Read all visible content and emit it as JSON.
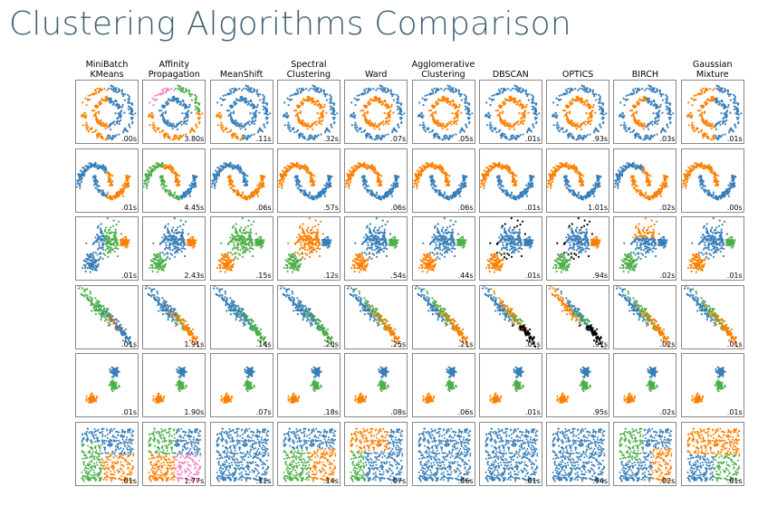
{
  "title": "Clustering Algorithms Comparison",
  "colors": {
    "c0": "#377eb8",
    "c1": "#ff7f00",
    "c2": "#4daf4a",
    "c3": "#f781bf",
    "noise": "#000000",
    "title": "#3f5f75"
  },
  "chart_data": {
    "type": "scatter",
    "algorithms": [
      "MiniBatch\nKMeans",
      "Affinity\nPropagation",
      "MeanShift",
      "Spectral\nClustering",
      "Ward",
      "Agglomerative\nClustering",
      "DBSCAN",
      "OPTICS",
      "BIRCH",
      "Gaussian\nMixture"
    ],
    "datasets": [
      "noisy_circles",
      "noisy_moons",
      "varied",
      "aniso",
      "blobs",
      "no_structure"
    ],
    "times": [
      [
        ".00s",
        "3.80s",
        ".11s",
        ".32s",
        ".07s",
        ".05s",
        ".01s",
        ".93s",
        ".03s",
        ".01s"
      ],
      [
        ".01s",
        "4.45s",
        ".06s",
        ".57s",
        ".06s",
        ".06s",
        ".01s",
        "1.01s",
        ".02s",
        ".00s"
      ],
      [
        ".01s",
        "2.43s",
        ".15s",
        ".12s",
        ".54s",
        ".44s",
        ".01s",
        ".94s",
        ".02s",
        ".01s"
      ],
      [
        ".01s",
        "1.91s",
        ".14s",
        ".20s",
        ".25s",
        ".21s",
        ".01s",
        ".97s",
        ".02s",
        ".01s"
      ],
      [
        ".01s",
        "1.90s",
        ".07s",
        ".18s",
        ".08s",
        ".06s",
        ".01s",
        ".95s",
        ".02s",
        ".01s"
      ],
      [
        ".01s",
        "1.77s",
        ".12s",
        ".14s",
        ".07s",
        ".06s",
        ".01s",
        ".94s",
        ".02s",
        ".01s"
      ]
    ]
  }
}
